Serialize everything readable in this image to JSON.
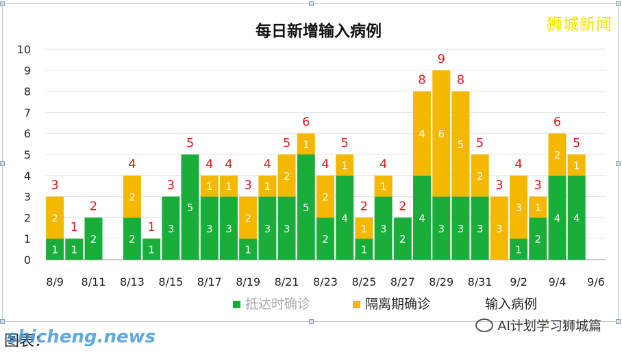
{
  "brand": "狮城新闻",
  "source": "AI计划学习狮城篇",
  "footer_caption": "图表：",
  "footer_watermark": "shicheng.news",
  "colors": {
    "arrival": "#19ad3a",
    "quarantine": "#f5b800",
    "total_label": "#e31a1a",
    "grid": "#e3e3e3"
  },
  "chart_data": {
    "type": "bar",
    "stacked": true,
    "title": "每日新增输入病例",
    "categories": [
      "8/9",
      "8/10",
      "8/11",
      "8/12",
      "8/13",
      "8/14",
      "8/15",
      "8/16",
      "8/17",
      "8/18",
      "8/19",
      "8/20",
      "8/21",
      "8/22",
      "8/23",
      "8/24",
      "8/25",
      "8/26",
      "8/27",
      "8/28",
      "8/29",
      "8/30",
      "8/31",
      "9/1",
      "9/2",
      "9/3",
      "9/4",
      "9/5",
      "9/6"
    ],
    "tick_labels": [
      "8/9",
      "8/11",
      "8/13",
      "8/15",
      "8/17",
      "8/19",
      "8/21",
      "8/23",
      "8/25",
      "8/27",
      "8/29",
      "8/31",
      "9/2",
      "9/4",
      "9/6"
    ],
    "series": [
      {
        "name": "抵达时确诊",
        "values": [
          1,
          1,
          2,
          0,
          2,
          1,
          3,
          5,
          3,
          3,
          1,
          3,
          3,
          5,
          2,
          4,
          1,
          3,
          2,
          4,
          3,
          3,
          3,
          0,
          1,
          2,
          4,
          4,
          null
        ]
      },
      {
        "name": "隔离期确诊",
        "values": [
          2,
          0,
          0,
          0,
          2,
          0,
          0,
          0,
          1,
          1,
          2,
          1,
          2,
          1,
          2,
          1,
          1,
          1,
          0,
          4,
          6,
          5,
          2,
          3,
          3,
          1,
          2,
          1,
          null
        ]
      }
    ],
    "totals": {
      "name": "输入病例",
      "values": [
        3,
        1,
        2,
        null,
        4,
        1,
        3,
        5,
        4,
        4,
        3,
        4,
        5,
        6,
        4,
        5,
        2,
        4,
        2,
        8,
        9,
        8,
        5,
        3,
        4,
        3,
        6,
        5,
        null
      ]
    },
    "ylim": [
      0,
      10
    ],
    "yticks": [
      0,
      1,
      2,
      3,
      4,
      5,
      6,
      7,
      8,
      9,
      10
    ],
    "grid": true,
    "legend_position": "bottom"
  }
}
